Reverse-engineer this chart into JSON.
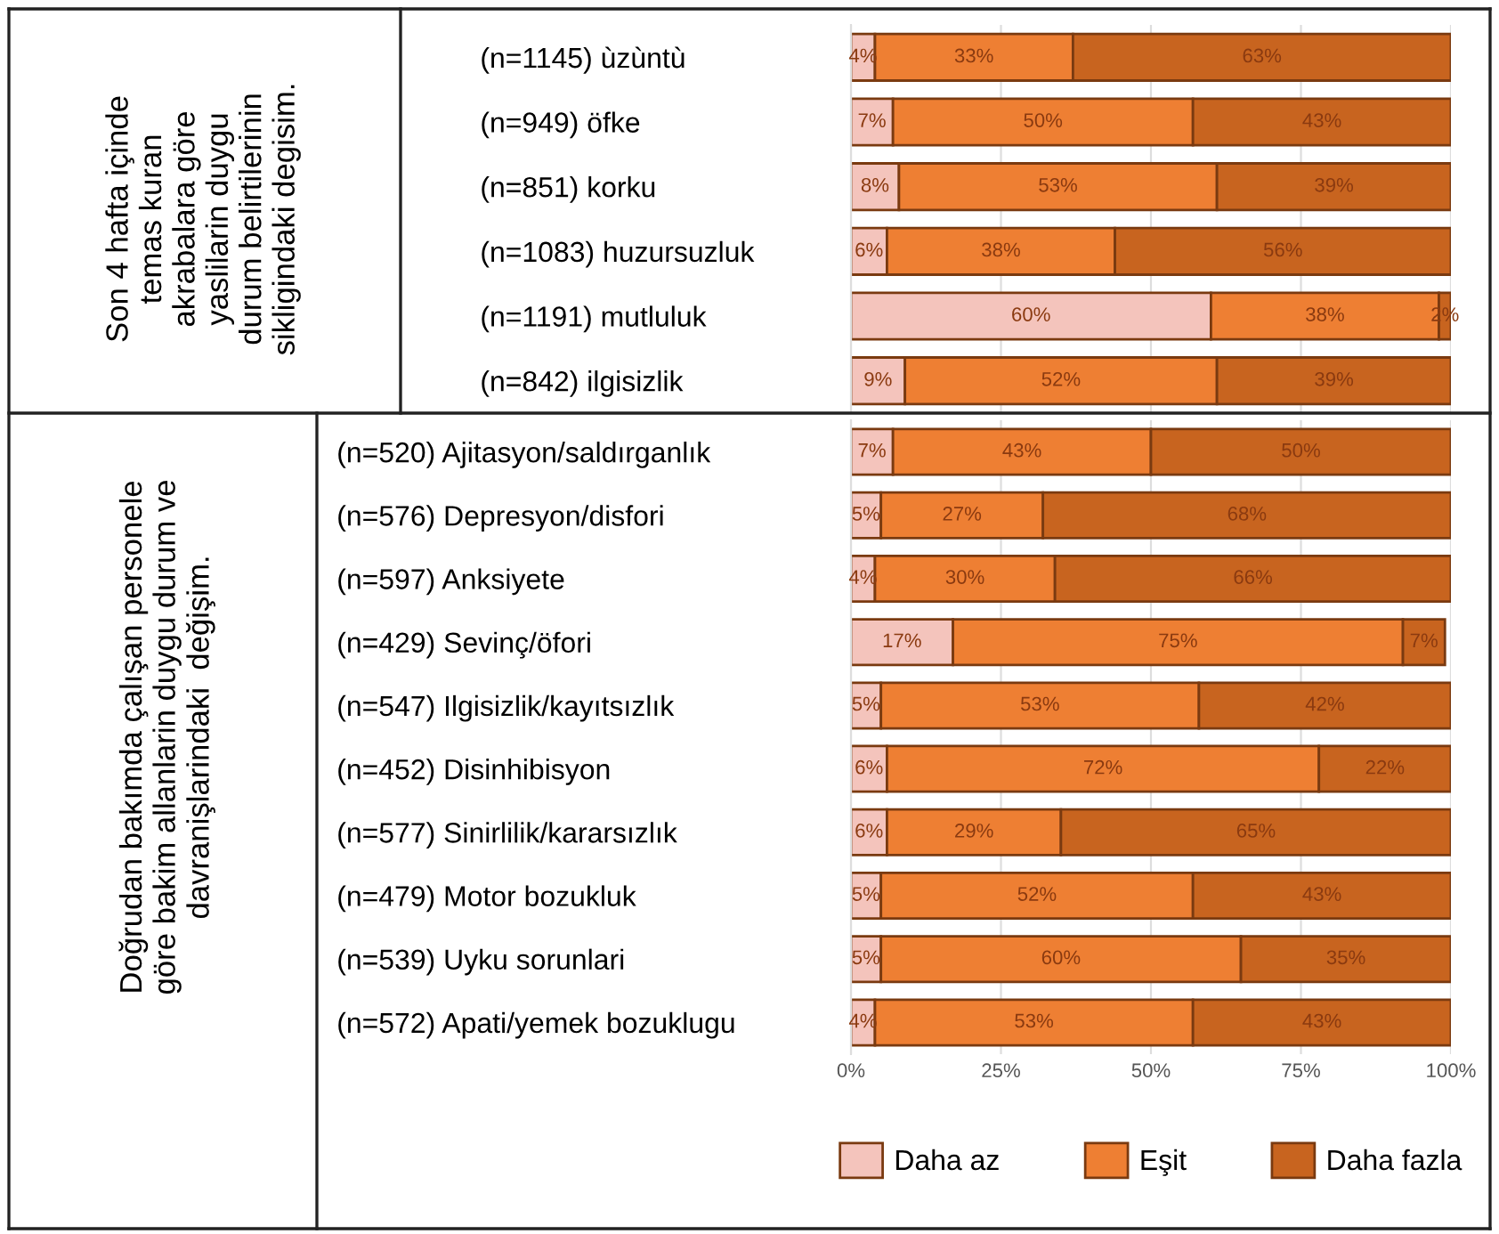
{
  "chart_data": [
    {
      "type": "bar",
      "orientation": "horizontal",
      "stacked": true,
      "ylabel": "Son 4 hafta içinde\ntemas kuran\nakrabalara göre\nyaslilarin duygu\ndurum belirtilerinin\nsikligindaki degisim.",
      "categories": [
        "(n=1145) ùzùntù",
        "(n=949) öfke",
        "(n=851) korku",
        "(n=1083) huzursuzluk",
        "(n=1191) mutluluk",
        "(n=842) ilgisizlik"
      ],
      "xlim": [
        0,
        100
      ],
      "tick_labels": "y",
      "grid": "x",
      "legend": false,
      "series": [
        {
          "color": "#f4c4bc",
          "values": [
            4,
            7,
            8,
            6,
            60,
            9
          ],
          "value_labels": [
            "4%",
            "7%",
            "8%",
            "6%",
            "60%",
            "9%"
          ]
        },
        {
          "color": "#ee7f33",
          "values": [
            33,
            50,
            53,
            38,
            38,
            52
          ],
          "value_labels": [
            "33%",
            "50%",
            "53%",
            "38%",
            "38%",
            "52%"
          ]
        },
        {
          "color": "#c8641f",
          "values": [
            63,
            43,
            39,
            56,
            2,
            39
          ],
          "value_labels": [
            "63%",
            "43%",
            "39%",
            "56%",
            "2%",
            "39%"
          ]
        }
      ]
    },
    {
      "type": "bar",
      "orientation": "horizontal",
      "stacked": true,
      "ylabel": "Doğrudan bakımda çalışan personele\ngöre bakim allanlarin duygu durum ve\ndavranişlarindaki  değişim.",
      "categories": [
        "(n=520) Ajitasyon/saldırganlık",
        "(n=576) Depresyon/disfori",
        "(n=597) Anksiyete",
        "(n=429) Sevinç/öfori",
        "(n=547) Ilgisizlik/kayıtsızlık",
        "(n=452) Disinhibisyon",
        "(n=577) Sinirlilik/kararsızlık",
        "(n=479) Motor bozukluk",
        "(n=539) Uyku sorunlari",
        "(n=572) Apati/yemek bozuklugu"
      ],
      "xlim": [
        0,
        100
      ],
      "xticks": [
        {
          "value": 0,
          "label": "0%"
        },
        {
          "value": 25,
          "label": "25%"
        },
        {
          "value": 50,
          "label": "50%"
        },
        {
          "value": 75,
          "label": "75%"
        },
        {
          "value": 100,
          "label": "100%"
        }
      ],
      "grid": "x",
      "legend": "bottom",
      "series": [
        {
          "name": "Daha az",
          "color": "#f4c4bc",
          "values": [
            7,
            5,
            4,
            17,
            5,
            6,
            6,
            5,
            5,
            4
          ],
          "value_labels": [
            "7%",
            "5%",
            "4%",
            "17%",
            "5%",
            "6%",
            "6%",
            "5%",
            "5%",
            "4%"
          ]
        },
        {
          "name": "Eşit",
          "color": "#ee7f33",
          "values": [
            43,
            27,
            30,
            75,
            53,
            72,
            29,
            52,
            60,
            53
          ],
          "value_labels": [
            "43%",
            "27%",
            "30%",
            "75%",
            "53%",
            "72%",
            "29%",
            "52%",
            "60%",
            "53%"
          ]
        },
        {
          "name": "Daha fazla",
          "color": "#c8641f",
          "values": [
            50,
            68,
            66,
            7,
            42,
            22,
            65,
            43,
            35,
            43
          ],
          "value_labels": [
            "50%",
            "68%",
            "66%",
            "7%",
            "42%",
            "22%",
            "65%",
            "43%",
            "35%",
            "43%"
          ]
        }
      ]
    }
  ]
}
